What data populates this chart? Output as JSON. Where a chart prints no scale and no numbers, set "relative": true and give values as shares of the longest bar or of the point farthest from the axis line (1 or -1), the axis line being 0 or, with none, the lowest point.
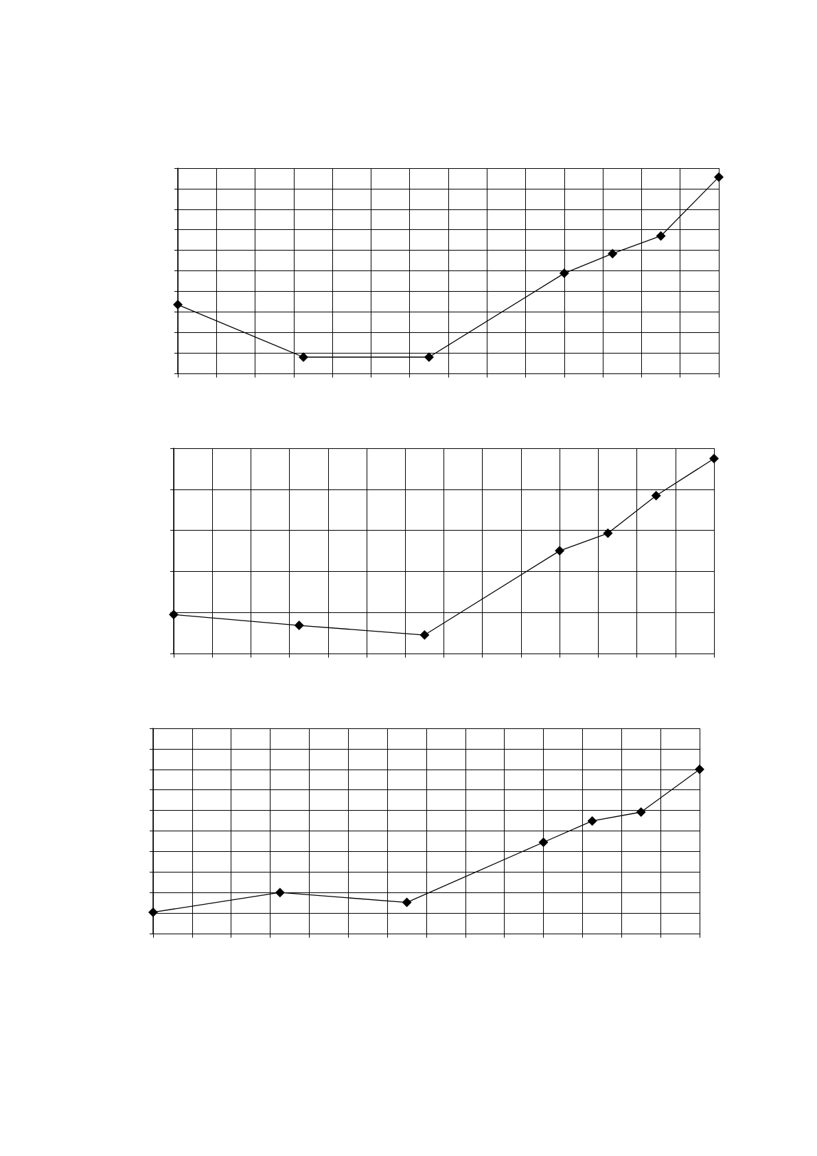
{
  "chart_data": [
    {
      "type": "line",
      "relative": true,
      "categories": [
        null,
        null,
        null,
        null,
        null,
        null,
        null,
        null,
        null,
        null,
        null,
        null,
        null,
        null,
        null,
        null,
        null,
        null,
        null,
        null,
        null,
        null,
        null,
        null,
        null,
        null,
        null,
        null,
        null,
        null,
        null,
        null,
        null,
        null,
        null,
        null,
        null,
        null,
        null,
        null,
        null,
        null,
        null,
        null,
        null,
        null,
        null,
        null,
        null,
        null,
        null,
        null,
        null,
        null,
        null,
        null,
        null
      ],
      "series": [
        {
          "color": "#000000",
          "values": [
            0.35,
            null,
            null,
            null,
            null,
            null,
            null,
            null,
            null,
            null,
            null,
            null,
            null,
            0.083,
            null,
            null,
            null,
            null,
            null,
            null,
            null,
            null,
            null,
            null,
            null,
            null,
            0.083,
            null,
            null,
            null,
            null,
            null,
            null,
            null,
            null,
            null,
            null,
            null,
            null,
            null,
            0.51,
            null,
            null,
            null,
            null,
            0.61,
            null,
            null,
            null,
            null,
            0.7,
            null,
            null,
            null,
            null,
            null,
            1
          ]
        }
      ],
      "marker": "diamond",
      "line_style": "solid",
      "grid": true
    },
    {
      "type": "line",
      "relative": true,
      "categories": [
        null,
        null,
        null,
        null,
        null,
        null,
        null,
        null,
        null,
        null,
        null,
        null,
        null,
        null,
        null,
        null,
        null,
        null,
        null,
        null,
        null,
        null,
        null,
        null,
        null,
        null,
        null,
        null,
        null,
        null,
        null,
        null,
        null,
        null,
        null,
        null,
        null,
        null,
        null,
        null,
        null,
        null,
        null,
        null,
        null,
        null,
        null,
        null,
        null,
        null,
        null,
        null,
        null,
        null,
        null,
        null,
        null
      ],
      "series": [
        {
          "color": "#000000",
          "values": [
            0.2,
            null,
            null,
            null,
            null,
            null,
            null,
            null,
            null,
            null,
            null,
            null,
            null,
            0.144,
            null,
            null,
            null,
            null,
            null,
            null,
            null,
            null,
            null,
            null,
            null,
            null,
            0.095,
            null,
            null,
            null,
            null,
            null,
            null,
            null,
            null,
            null,
            null,
            null,
            null,
            null,
            0.527,
            null,
            null,
            null,
            null,
            0.617,
            null,
            null,
            null,
            null,
            0.81,
            null,
            null,
            null,
            null,
            null,
            1
          ]
        }
      ],
      "marker": "diamond",
      "line_style": "solid",
      "grid": true
    },
    {
      "type": "line",
      "relative": true,
      "categories": [
        null,
        null,
        null,
        null,
        null,
        null,
        null,
        null,
        null,
        null,
        null,
        null,
        null,
        null,
        null,
        null,
        null,
        null,
        null,
        null,
        null,
        null,
        null,
        null,
        null,
        null,
        null,
        null,
        null,
        null,
        null,
        null,
        null,
        null,
        null,
        null,
        null,
        null,
        null,
        null,
        null,
        null,
        null,
        null,
        null,
        null,
        null,
        null,
        null,
        null,
        null,
        null,
        null,
        null,
        null,
        null,
        null
      ],
      "series": [
        {
          "color": "#000000",
          "values": [
            0.13,
            null,
            null,
            null,
            null,
            null,
            null,
            null,
            null,
            null,
            null,
            null,
            null,
            0.25,
            null,
            null,
            null,
            null,
            null,
            null,
            null,
            null,
            null,
            null,
            null,
            null,
            0.19,
            null,
            null,
            null,
            null,
            null,
            null,
            null,
            null,
            null,
            null,
            null,
            null,
            null,
            0.556,
            null,
            null,
            null,
            null,
            0.686,
            null,
            null,
            null,
            null,
            0.74,
            null,
            null,
            null,
            null,
            null,
            1
          ]
        }
      ],
      "marker": "diamond",
      "line_style": "solid",
      "grid": true
    }
  ]
}
